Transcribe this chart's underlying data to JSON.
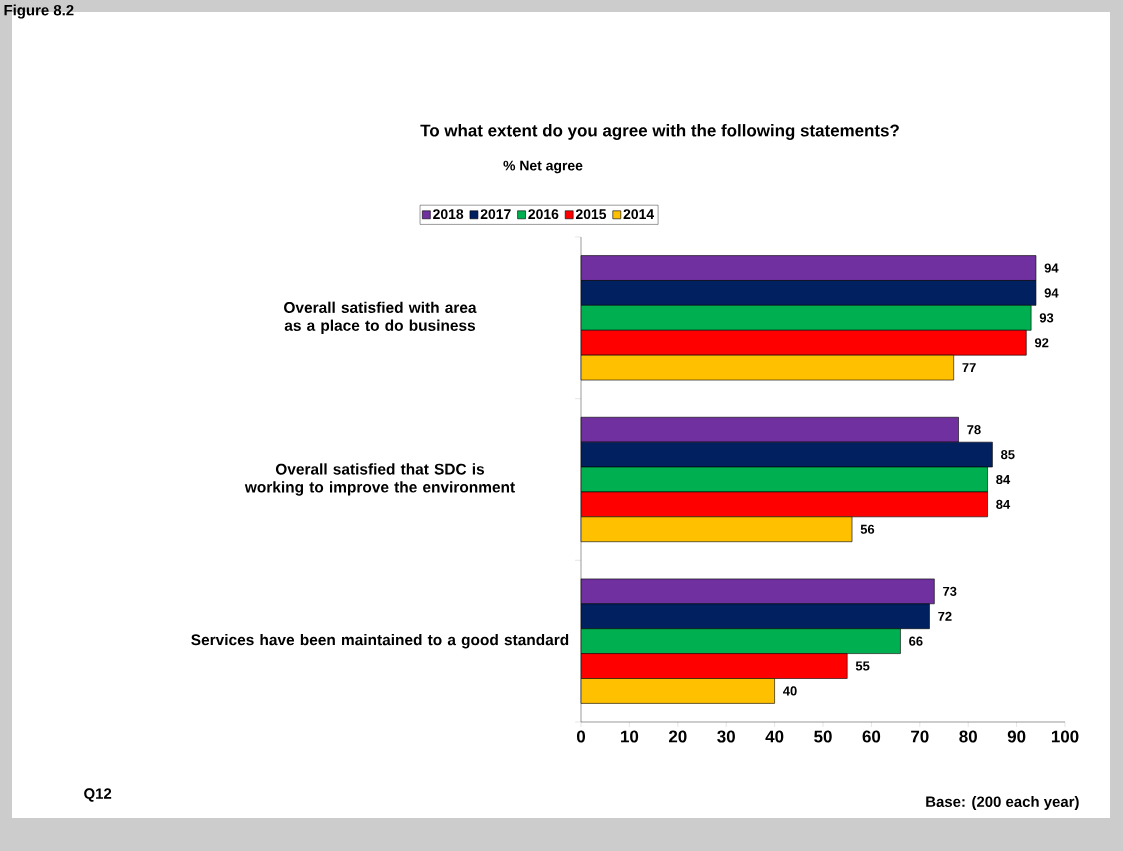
{
  "chart_data": {
    "type": "bar",
    "orientation": "horizontal",
    "title": "To what extent do you agree with the following statements?",
    "subtitle": "% Net agree",
    "categories": [
      "Overall satisfied with area as a place to do business",
      "Overall satisfied that SDC is working to improve the environment",
      "Services have been maintained to a good standard"
    ],
    "series": [
      {
        "name": "2018",
        "color": "#7030a0",
        "values": [
          94,
          78,
          73
        ]
      },
      {
        "name": "2017",
        "color": "#002060",
        "values": [
          94,
          85,
          72
        ]
      },
      {
        "name": "2016",
        "color": "#00b050",
        "values": [
          93,
          84,
          66
        ]
      },
      {
        "name": "2015",
        "color": "#ff0000",
        "values": [
          92,
          84,
          55
        ]
      },
      {
        "name": "2014",
        "color": "#ffc000",
        "values": [
          77,
          56,
          40
        ]
      }
    ],
    "xlim": [
      0,
      100
    ],
    "xticks": [
      0,
      10,
      20,
      30,
      40,
      50,
      60,
      70,
      80,
      90,
      100
    ],
    "legend": "top",
    "data_labels": true,
    "annotations": [
      "Figure 8.2",
      "Q12",
      "Base: (200 each year)"
    ]
  }
}
